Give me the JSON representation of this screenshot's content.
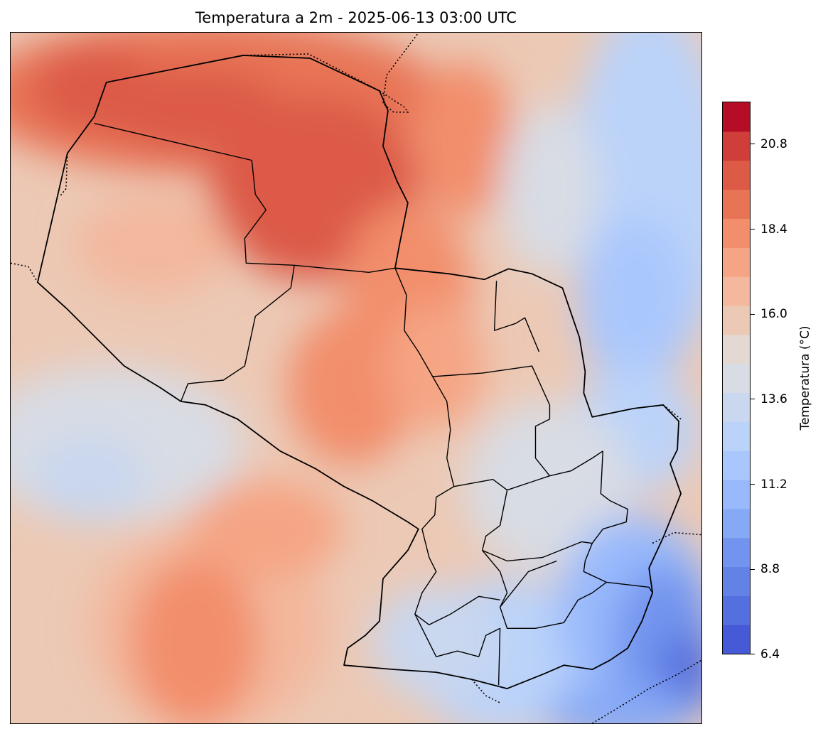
{
  "title": "Temperatura a 2m - 2025-06-13 03:00 UTC",
  "colorbar": {
    "label": "Temperatura (°C)",
    "min": 6.4,
    "max": 22.0,
    "step": 0.8,
    "ticks": [
      "6.4",
      "8.8",
      "11.2",
      "13.6",
      "16.0",
      "18.4",
      "20.8"
    ],
    "colors": [
      "#4659d6",
      "#5470de",
      "#6282e6",
      "#7394ee",
      "#86a9f6",
      "#98b9fc",
      "#aac7fd",
      "#bbd3f9",
      "#c9d7ef",
      "#d8dce4",
      "#e4d9d2",
      "#ecc9b5",
      "#f3b89d",
      "#f5a584",
      "#f28e6c",
      "#e87456",
      "#dc5a46",
      "#cf3e38",
      "#b50d26"
    ]
  },
  "map": {
    "region": "Paraguay",
    "country_border": "solid",
    "neighbour_borders": "dotted",
    "subdivisions": "departments"
  }
}
